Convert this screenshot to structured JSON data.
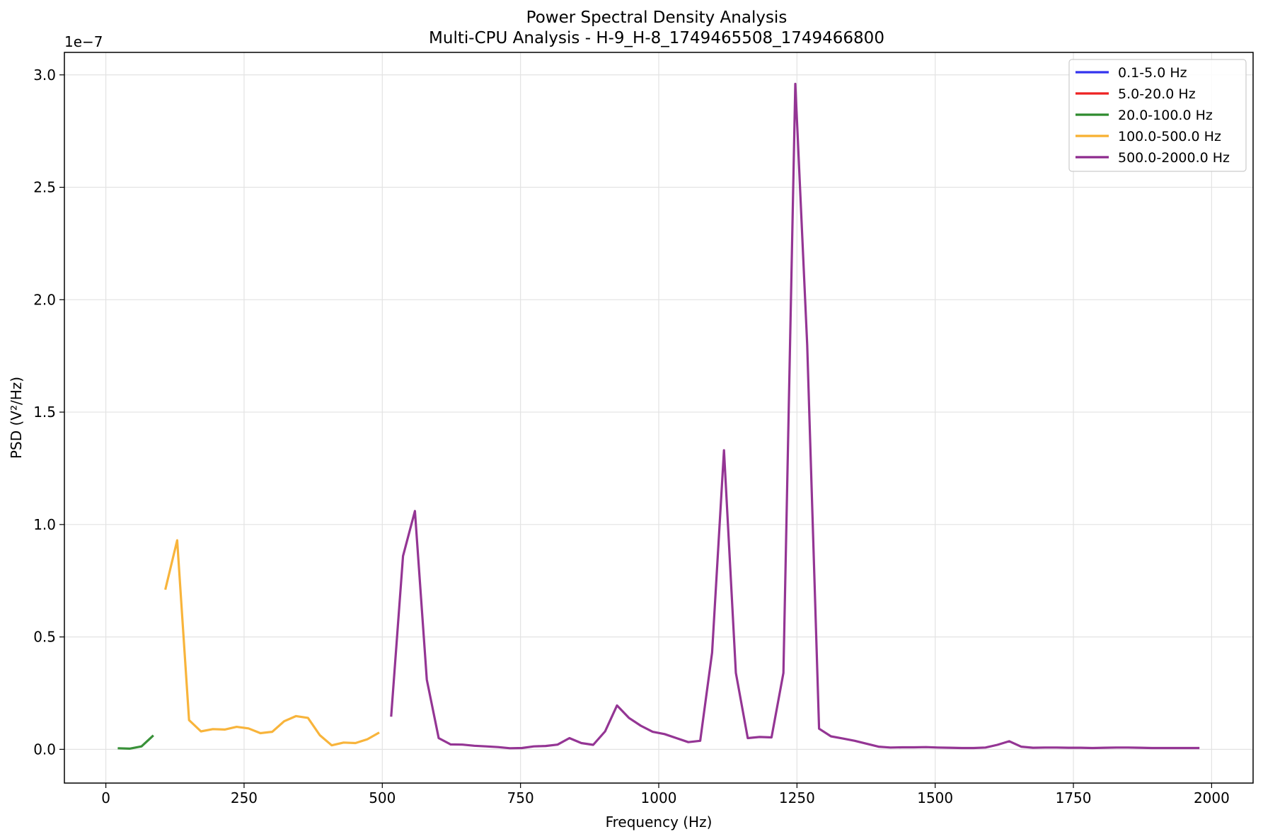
{
  "chart_data": {
    "type": "line",
    "title": "Power Spectral Density Analysis",
    "subtitle": "Multi-CPU Analysis - H-9_H-8_1749465508_1749466800",
    "xlabel": "Frequency (Hz)",
    "ylabel": "PSD (V²/Hz)",
    "y_offset_label": "1e−7",
    "y_scale": 1e-07,
    "xlim": [
      -75,
      2075
    ],
    "ylim": [
      -0.15,
      3.1
    ],
    "x_ticks": [
      0,
      250,
      500,
      750,
      1000,
      1250,
      1500,
      1750,
      2000
    ],
    "x_tick_labels": [
      "0",
      "250",
      "500",
      "750",
      "1000",
      "1250",
      "1500",
      "1750",
      "2000"
    ],
    "y_ticks": [
      0.0,
      0.5,
      1.0,
      1.5,
      2.0,
      2.5,
      3.0
    ],
    "y_tick_labels": [
      "0.0",
      "0.5",
      "1.0",
      "1.5",
      "2.0",
      "2.5",
      "3.0"
    ],
    "grid": true,
    "legend_position": "top-right",
    "series": [
      {
        "name": "0.1-5.0 Hz",
        "color": "#3333ee",
        "x": [],
        "y": []
      },
      {
        "name": "5.0-20.0 Hz",
        "color": "#ee2222",
        "x": [],
        "y": []
      },
      {
        "name": "20.0-100.0 Hz",
        "color": "#2e8b2e",
        "x": [
          21.5,
          43,
          64.5,
          86
        ],
        "y": [
          0.005,
          0.003,
          0.013,
          0.062
        ]
      },
      {
        "name": "100.0-500.0 Hz",
        "color": "#f8b030",
        "x": [
          107.5,
          129,
          150.5,
          172,
          193.5,
          215,
          236.5,
          258,
          279.5,
          301,
          322.5,
          344,
          365.5,
          387,
          408.5,
          430,
          451.5,
          473,
          494.5
        ],
        "y": [
          0.71,
          0.93,
          0.13,
          0.08,
          0.09,
          0.088,
          0.1,
          0.093,
          0.072,
          0.078,
          0.125,
          0.148,
          0.14,
          0.063,
          0.018,
          0.03,
          0.028,
          0.045,
          0.075
        ]
      },
      {
        "name": "500.0-2000.0 Hz",
        "color": "#8e2a8e",
        "x": [
          516,
          537.5,
          559,
          580.5,
          602,
          623.5,
          645,
          666.5,
          688,
          709.5,
          731,
          752.5,
          774,
          795.5,
          817,
          838.5,
          860,
          881.5,
          903,
          924.5,
          946,
          967.5,
          989,
          1010.5,
          1032,
          1053.5,
          1075,
          1096.5,
          1118,
          1139.5,
          1161,
          1182.5,
          1204,
          1225.5,
          1247,
          1268.5,
          1290,
          1311.5,
          1333,
          1354.5,
          1376,
          1397.5,
          1419,
          1440.5,
          1462,
          1483.5,
          1505,
          1526.5,
          1548,
          1569.5,
          1591,
          1612.5,
          1634,
          1655.5,
          1677,
          1698.5,
          1720,
          1741.5,
          1763,
          1784.5,
          1806,
          1827.5,
          1849,
          1870.5,
          1892,
          1913.5,
          1935,
          1956.5,
          1978
        ],
        "y": [
          0.145,
          0.86,
          1.06,
          0.31,
          0.05,
          0.022,
          0.021,
          0.016,
          0.013,
          0.01,
          0.005,
          0.006,
          0.013,
          0.015,
          0.021,
          0.05,
          0.028,
          0.02,
          0.08,
          0.195,
          0.14,
          0.105,
          0.078,
          0.068,
          0.05,
          0.032,
          0.038,
          0.43,
          1.33,
          0.34,
          0.05,
          0.055,
          0.053,
          0.34,
          2.96,
          1.8,
          0.092,
          0.058,
          0.048,
          0.038,
          0.025,
          0.012,
          0.008,
          0.009,
          0.009,
          0.01,
          0.008,
          0.007,
          0.006,
          0.006,
          0.008,
          0.02,
          0.036,
          0.012,
          0.007,
          0.008,
          0.008,
          0.007,
          0.007,
          0.006,
          0.007,
          0.008,
          0.008,
          0.007,
          0.006,
          0.006,
          0.006,
          0.006,
          0.006
        ]
      }
    ]
  }
}
